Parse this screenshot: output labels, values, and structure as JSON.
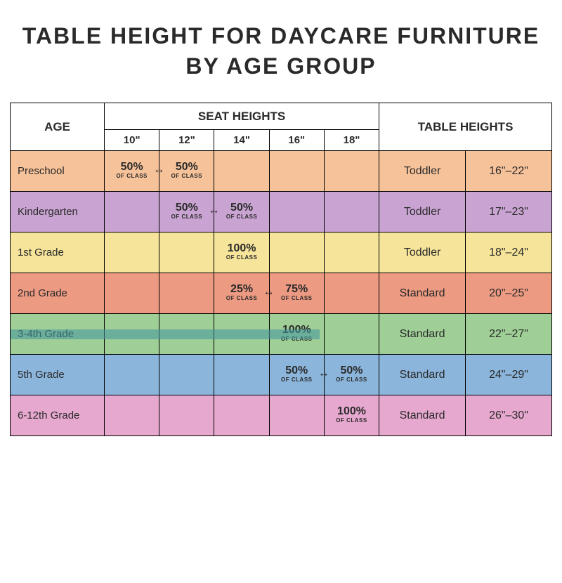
{
  "title_line1": "TABLE HEIGHT FOR DAYCARE FURNITURE",
  "title_line2": "BY AGE GROUP",
  "headers": {
    "age": "AGE",
    "seat_heights": "SEAT HEIGHTS",
    "table_heights": "TABLE HEIGHTS",
    "seat_cols": [
      "10\"",
      "12\"",
      "14\"",
      "16\"",
      "18\""
    ]
  },
  "of_class_label": "OF CLASS",
  "row_colors": {
    "preschool": "#f6c29a",
    "kindergarten": "#c9a4d2",
    "grade1": "#f5e49a",
    "grade2": "#ec9a82",
    "grade34": "#9fcf96",
    "grade5": "#8bb5db",
    "grade612": "#e7a8cf"
  },
  "border_color": "#000000",
  "background_color": "#ffffff",
  "title_fontsize": 32,
  "rows": [
    {
      "key": "preschool",
      "age": "Preschool",
      "seats": [
        {
          "pct": "50%",
          "arrow": true
        },
        {
          "pct": "50%"
        },
        null,
        null,
        null
      ],
      "table_type": "Toddler",
      "table_height": "16\"–22\""
    },
    {
      "key": "kindergarten",
      "age": "Kindergarten",
      "seats": [
        null,
        {
          "pct": "50%",
          "arrow": true
        },
        {
          "pct": "50%"
        },
        null,
        null
      ],
      "table_type": "Toddler",
      "table_height": "17\"–23\""
    },
    {
      "key": "grade1",
      "age": "1st Grade",
      "seats": [
        null,
        null,
        {
          "pct": "100%"
        },
        null,
        null
      ],
      "table_type": "Toddler",
      "table_height": "18\"–24\""
    },
    {
      "key": "grade2",
      "age": "2nd Grade",
      "seats": [
        null,
        null,
        {
          "pct": "25%",
          "arrow": true
        },
        {
          "pct": "75%"
        },
        null
      ],
      "table_type": "Standard",
      "table_height": "20\"–25\""
    },
    {
      "key": "grade34",
      "age": "3-4th Grade",
      "seats": [
        null,
        null,
        null,
        {
          "pct": "100%"
        },
        null
      ],
      "table_type": "Standard",
      "table_height": "22\"–27\"",
      "highlight_bar": true
    },
    {
      "key": "grade5",
      "age": "5th Grade",
      "seats": [
        null,
        null,
        null,
        {
          "pct": "50%",
          "arrow": true
        },
        {
          "pct": "50%"
        }
      ],
      "table_type": "Standard",
      "table_height": "24\"–29\""
    },
    {
      "key": "grade612",
      "age": "6-12th Grade",
      "seats": [
        null,
        null,
        null,
        null,
        {
          "pct": "100%"
        }
      ],
      "table_type": "Standard",
      "table_height": "26\"–30\""
    }
  ]
}
